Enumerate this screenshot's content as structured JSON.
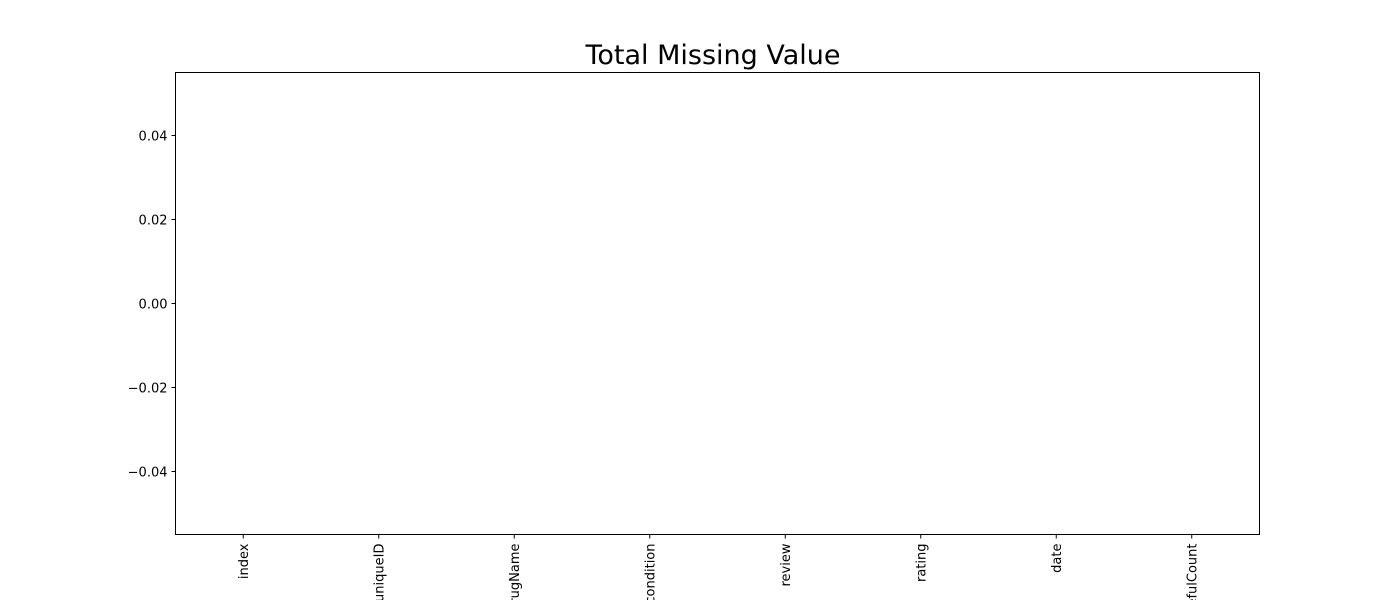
{
  "chart_data": {
    "type": "bar",
    "title": "Total Missing Value",
    "xlabel": "",
    "ylabel": "",
    "categories": [
      "index",
      "uniqueID",
      "drugName",
      "condition",
      "review",
      "rating",
      "date",
      "usefulCount"
    ],
    "values": [
      0,
      0,
      0,
      0,
      0,
      0,
      0,
      0
    ],
    "ylim": [
      -0.055,
      0.055
    ],
    "yticks": [
      -0.04,
      -0.02,
      0.0,
      0.02,
      0.04
    ],
    "ytick_labels": [
      "−0.04",
      "−0.02",
      "0.00",
      "0.02",
      "0.04"
    ],
    "xtick_rotation": "vertical",
    "grid": false,
    "legend": "none",
    "colors": {
      "bar": "#1f77b4",
      "axis": "#000000",
      "background": "#ffffff"
    }
  }
}
